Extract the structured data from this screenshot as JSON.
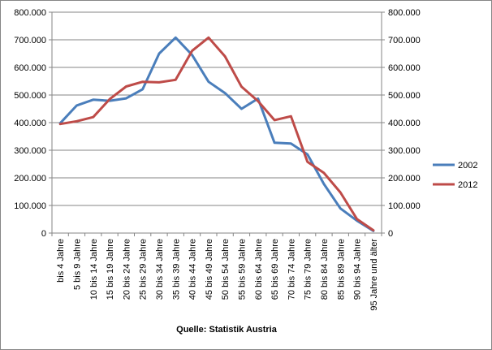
{
  "chart_data": {
    "type": "line",
    "categories": [
      "bis 4 Jahre",
      "5 bis 9 Jahre",
      "10 bis 14 Jahre",
      "15 bis 19 Jahre",
      "20 bis 24 Jahre",
      "25 bis 29 Jahre",
      "30 bis 34 Jahre",
      "35 bis 39 Jahre",
      "40 bis 44 Jahre",
      "45 bis 49 Jahre",
      "50 bis 54 Jahre",
      "55 bis 59 Jahre",
      "60 bis 64 Jahre",
      "65 bis 69 Jahre",
      "70 bis 74 Jahre",
      "75 bis 79 Jahre",
      "80 bis 84 Jahre",
      "85 bis 89 Jahre",
      "90 bis 94 Jahre",
      "95 Jahre und älter"
    ],
    "series": [
      {
        "name": "2002",
        "color": "#4a7ebb",
        "values": [
          398000,
          462000,
          483000,
          479000,
          488000,
          521000,
          650000,
          708000,
          645000,
          548000,
          507000,
          450000,
          487000,
          327000,
          324000,
          285000,
          178000,
          89000,
          45000,
          8000
        ]
      },
      {
        "name": "2012",
        "color": "#be4b48",
        "values": [
          395000,
          405000,
          420000,
          485000,
          531000,
          548000,
          546000,
          555000,
          660000,
          708000,
          640000,
          530000,
          478000,
          409000,
          423000,
          258000,
          218000,
          147000,
          51000,
          10000
        ]
      }
    ],
    "ylim": [
      0,
      800000
    ],
    "yticks": [
      "0",
      "100.000",
      "200.000",
      "300.000",
      "400.000",
      "500.000",
      "600.000",
      "700.000",
      "800.000"
    ],
    "secondary_yticks": [
      "0",
      "100.000",
      "200.000",
      "300.000",
      "400.000",
      "500.000",
      "600.000",
      "700.000",
      "800.000"
    ],
    "grid": true,
    "legend_position": "right",
    "caption": "Quelle: Statistik Austria"
  }
}
